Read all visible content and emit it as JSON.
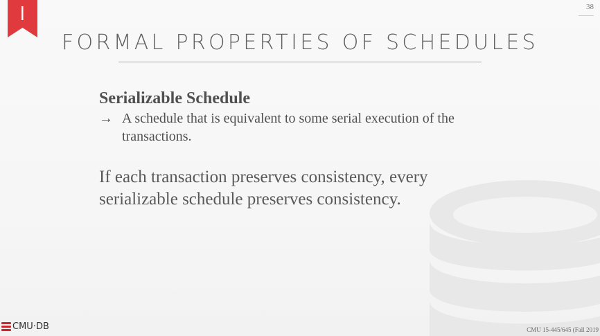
{
  "slide": {
    "page_number": "38",
    "title": "FORMAL PROPERTIES OF SCHEDULES",
    "heading": "Serializable Schedule",
    "bullets": [
      {
        "arrow": "→",
        "text": "A schedule that is equivalent to some serial execution of the transactions."
      }
    ],
    "statement": "If each transaction preserves consistency, every serializable schedule preserves consistency."
  },
  "footer": {
    "logo_text": "CMU·DB",
    "course": "CMU 15-445/645 (Fall 2019"
  },
  "colors": {
    "bookmark": "#e0393e",
    "text": "#595959",
    "watermark": "#e6e6e6"
  },
  "icons": [
    "bookmark-icon",
    "database-watermark-icon",
    "cmu-db-logo-icon"
  ]
}
